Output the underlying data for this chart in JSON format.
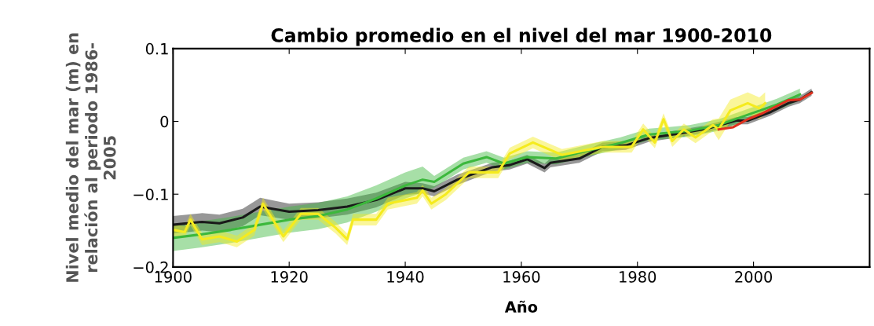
{
  "chart_data": {
    "type": "line",
    "title": "Cambio promedio en el nivel del mar 1900-2010",
    "xlabel": "Año",
    "ylabel": "Nivel medio del mar (m) en\nrelación al periodo 1986-\n2005",
    "xlim": [
      1900,
      2020
    ],
    "xticks": [
      1900,
      1920,
      1940,
      1960,
      1980,
      2000,
      {
        "value": 2020,
        "label": null
      }
    ],
    "ylim": [
      -0.2,
      0.1
    ],
    "yticks": [
      {
        "value": -0.2,
        "label": "−0.2"
      },
      {
        "value": -0.1,
        "label": "−0.1"
      },
      {
        "value": 0,
        "label": "0"
      },
      {
        "value": 0.1,
        "label": "0.1"
      }
    ],
    "grid": false,
    "legend": false,
    "line_style": "solid",
    "marker": "none",
    "series": [
      {
        "color": "#1a1a1a",
        "x": [
          1900,
          1905,
          1908,
          1912,
          1915,
          1920,
          1925,
          1930,
          1935,
          1940,
          1943,
          1945,
          1949,
          1955,
          1958,
          1961,
          1964,
          1965,
          1970,
          1974,
          1978,
          1982,
          1987,
          1992,
          1997,
          1999,
          2003,
          2006,
          2008,
          2010
        ],
        "values": [
          -0.142,
          -0.138,
          -0.14,
          -0.132,
          -0.117,
          -0.124,
          -0.122,
          -0.117,
          -0.108,
          -0.092,
          -0.092,
          -0.096,
          -0.08,
          -0.063,
          -0.06,
          -0.052,
          -0.064,
          -0.057,
          -0.051,
          -0.035,
          -0.033,
          -0.023,
          -0.017,
          -0.01,
          0.001,
          0.001,
          0.013,
          0.025,
          0.03,
          0.04
        ],
        "lower": [
          -0.154,
          -0.15,
          -0.152,
          -0.144,
          -0.129,
          -0.135,
          -0.133,
          -0.128,
          -0.118,
          -0.101,
          -0.099,
          -0.103,
          -0.087,
          -0.069,
          -0.066,
          -0.058,
          -0.07,
          -0.063,
          -0.057,
          -0.041,
          -0.039,
          -0.028,
          -0.022,
          -0.015,
          -0.004,
          -0.004,
          0.008,
          0.02,
          0.025,
          0.035
        ],
        "upper": [
          -0.13,
          -0.126,
          -0.128,
          -0.12,
          -0.105,
          -0.113,
          -0.111,
          -0.106,
          -0.098,
          -0.083,
          -0.085,
          -0.089,
          -0.073,
          -0.057,
          -0.054,
          -0.046,
          -0.058,
          -0.051,
          -0.045,
          -0.029,
          -0.027,
          -0.018,
          -0.012,
          -0.005,
          0.006,
          0.006,
          0.018,
          0.03,
          0.035,
          0.045
        ]
      },
      {
        "color": "#3cb83c",
        "x": [
          1900,
          1905,
          1910,
          1915,
          1920,
          1925,
          1930,
          1935,
          1940,
          1943,
          1945,
          1950,
          1954,
          1957,
          1961,
          1966,
          1972,
          1977,
          1982,
          1985,
          1989,
          1994,
          1999,
          2004,
          2008
        ],
        "values": [
          -0.16,
          -0.155,
          -0.149,
          -0.142,
          -0.135,
          -0.13,
          -0.121,
          -0.106,
          -0.088,
          -0.08,
          -0.083,
          -0.058,
          -0.049,
          -0.058,
          -0.049,
          -0.051,
          -0.039,
          -0.03,
          -0.018,
          -0.016,
          -0.013,
          -0.005,
          0.009,
          0.023,
          0.037
        ],
        "lower": [
          -0.178,
          -0.173,
          -0.167,
          -0.16,
          -0.153,
          -0.148,
          -0.139,
          -0.124,
          -0.106,
          -0.098,
          -0.091,
          -0.066,
          -0.057,
          -0.066,
          -0.057,
          -0.059,
          -0.047,
          -0.038,
          -0.026,
          -0.024,
          -0.021,
          -0.013,
          0.001,
          0.015,
          0.029
        ],
        "upper": [
          -0.142,
          -0.137,
          -0.131,
          -0.124,
          -0.117,
          -0.112,
          -0.103,
          -0.088,
          -0.07,
          -0.062,
          -0.075,
          -0.05,
          -0.041,
          -0.05,
          -0.041,
          -0.043,
          -0.031,
          -0.022,
          -0.01,
          -0.008,
          -0.005,
          0.003,
          0.017,
          0.031,
          0.045
        ]
      },
      {
        "color": "#f5eb1e",
        "x": [
          1900,
          1902,
          1903,
          1905,
          1908,
          1911,
          1914,
          1915.5,
          1919,
          1922,
          1925,
          1928,
          1930,
          1931,
          1935,
          1937,
          1942,
          1943,
          1944.5,
          1947,
          1951,
          1956,
          1958,
          1962,
          1967,
          1974,
          1979,
          1981,
          1983,
          1984.5,
          1986,
          1988,
          1990,
          1993,
          1994,
          1996,
          1999,
          2001,
          2002
        ],
        "values": [
          -0.149,
          -0.152,
          -0.135,
          -0.162,
          -0.158,
          -0.165,
          -0.149,
          -0.113,
          -0.158,
          -0.127,
          -0.127,
          -0.146,
          -0.162,
          -0.135,
          -0.135,
          -0.113,
          -0.105,
          -0.095,
          -0.113,
          -0.1,
          -0.07,
          -0.07,
          -0.044,
          -0.029,
          -0.046,
          -0.035,
          -0.035,
          -0.011,
          -0.029,
          0.003,
          -0.027,
          -0.011,
          -0.022,
          -0.005,
          -0.011,
          0.015,
          0.025,
          0.018,
          0.025
        ],
        "lower": [
          -0.157,
          -0.16,
          -0.143,
          -0.17,
          -0.166,
          -0.173,
          -0.157,
          -0.121,
          -0.166,
          -0.135,
          -0.135,
          -0.154,
          -0.17,
          -0.143,
          -0.143,
          -0.121,
          -0.113,
          -0.103,
          -0.121,
          -0.108,
          -0.078,
          -0.078,
          -0.052,
          -0.037,
          -0.054,
          -0.043,
          -0.043,
          -0.019,
          -0.037,
          -0.005,
          -0.035,
          -0.019,
          -0.03,
          -0.013,
          -0.026,
          0.0,
          0.01,
          0.003,
          0.01
        ],
        "upper": [
          -0.141,
          -0.144,
          -0.127,
          -0.154,
          -0.15,
          -0.157,
          -0.141,
          -0.105,
          -0.15,
          -0.119,
          -0.119,
          -0.138,
          -0.154,
          -0.127,
          -0.127,
          -0.105,
          -0.097,
          -0.087,
          -0.105,
          -0.092,
          -0.062,
          -0.062,
          -0.036,
          -0.021,
          -0.038,
          -0.027,
          -0.027,
          -0.003,
          -0.021,
          0.011,
          -0.019,
          -0.003,
          -0.014,
          0.003,
          0.004,
          0.03,
          0.04,
          0.033,
          0.04
        ]
      },
      {
        "color": "#e0301e",
        "x": [
          1994,
          1996.5,
          1999,
          2001.5,
          2004,
          2006,
          2008,
          2010
        ],
        "values": [
          -0.011,
          -0.008,
          0.003,
          0.011,
          0.021,
          0.029,
          0.03,
          0.039
        ]
      }
    ]
  }
}
